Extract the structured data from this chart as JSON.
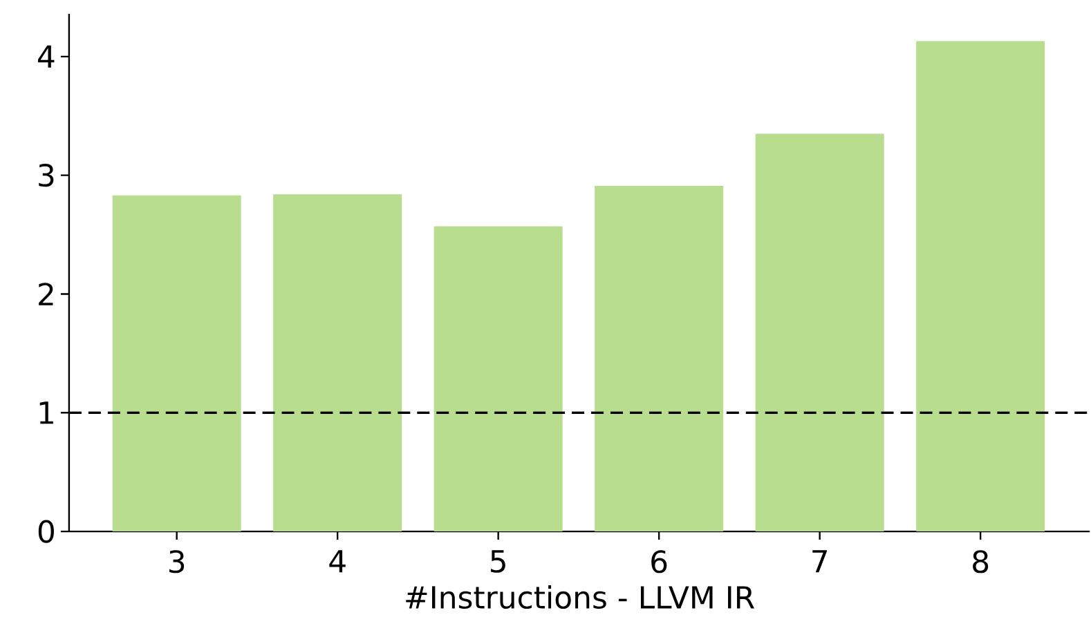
{
  "chart_data": {
    "type": "bar",
    "xlabel": "#Instructions - LLVM IR",
    "categories": [
      "3",
      "4",
      "5",
      "6",
      "7",
      "8"
    ],
    "values": [
      2.83,
      2.84,
      2.57,
      2.91,
      3.35,
      4.13
    ],
    "color": "#b9dd8f",
    "ylim": [
      0,
      4.36
    ],
    "yticks": [
      0,
      1,
      2,
      3,
      4
    ],
    "ref_lines": [
      {
        "axis": "y",
        "value": 1,
        "color": "#000000",
        "line_style": "dashed"
      }
    ],
    "grid": false
  }
}
